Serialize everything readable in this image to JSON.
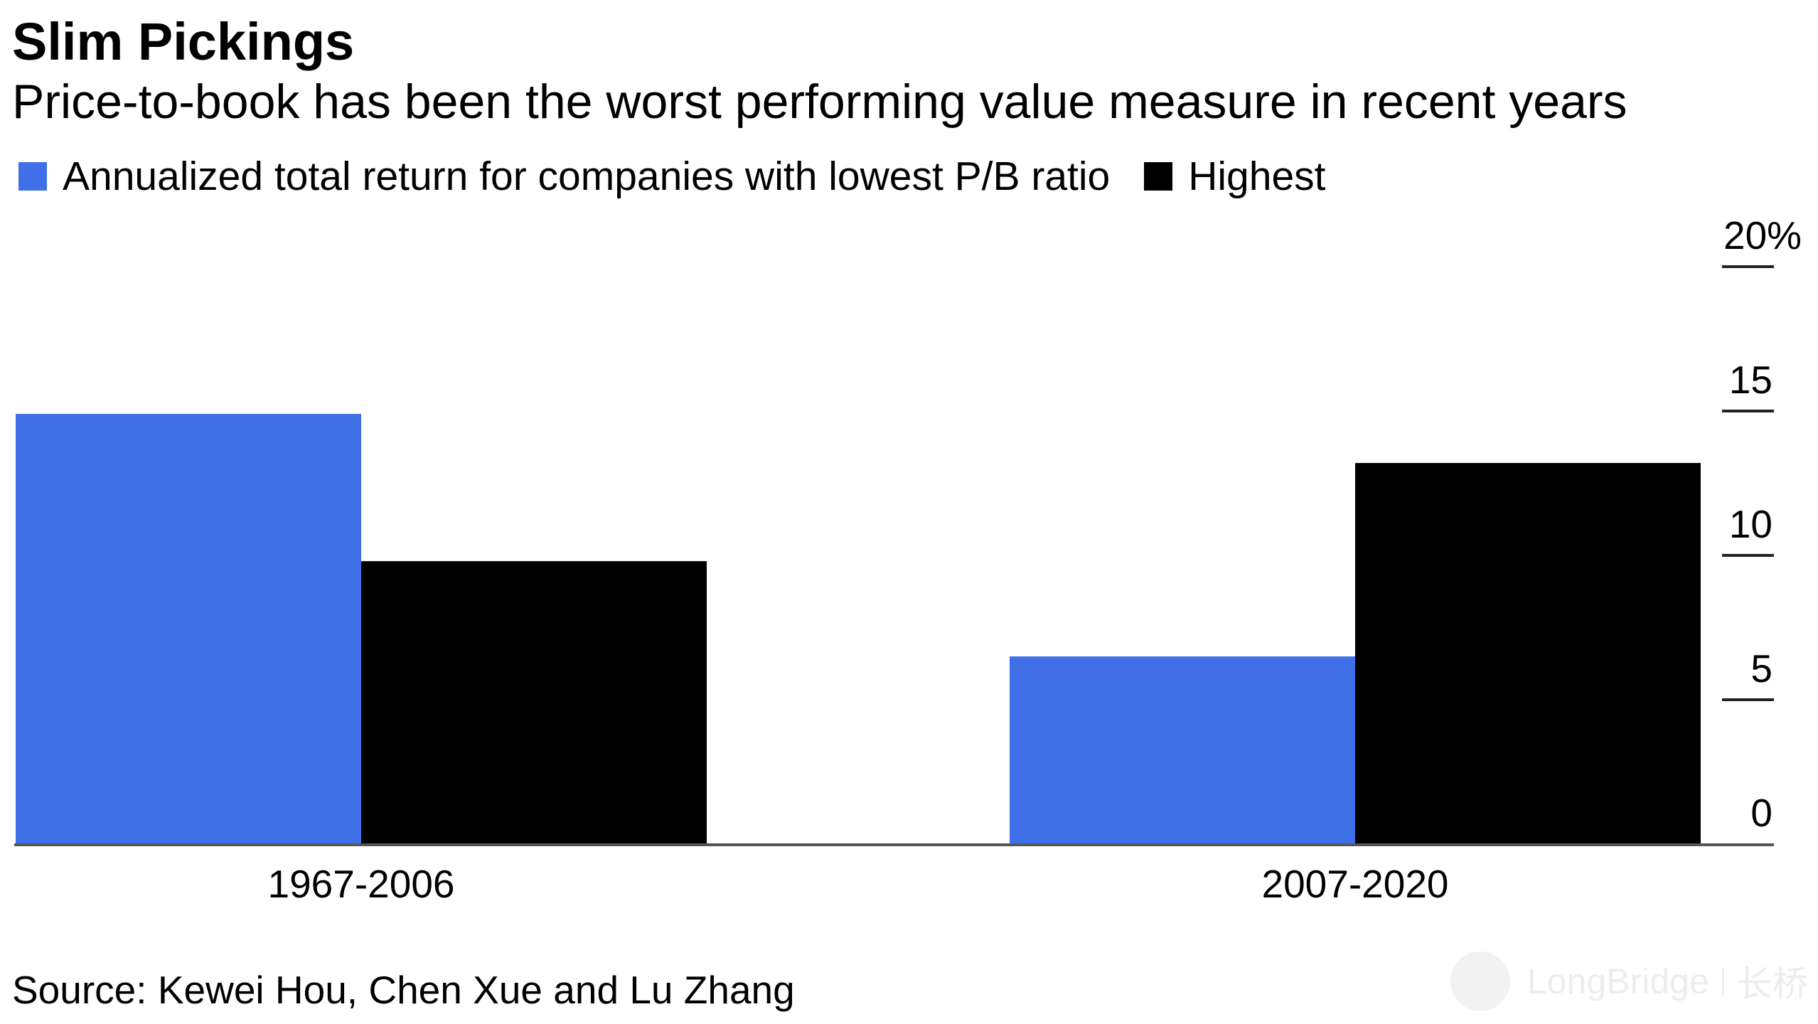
{
  "title": "Slim Pickings",
  "subtitle": "Price-to-book has been the worst performing value measure in recent years",
  "source": "Source: Kewei Hou, Chen Xue and Lu Zhang",
  "watermark": {
    "text": "LongBridge",
    "cn_text": "长桥"
  },
  "colors": {
    "lowest": "#4070E8",
    "highest": "#000000",
    "axis": "#555555",
    "tick": "#222222"
  },
  "chart_data": {
    "type": "bar",
    "categories": [
      "1967-2006",
      "2007-2020"
    ],
    "series": [
      {
        "name": "Annualized total return for companies with lowest P/B ratio",
        "values": [
          14.9,
          6.5
        ],
        "color": "#4070E8"
      },
      {
        "name": "Highest",
        "values": [
          9.8,
          13.2
        ],
        "color": "#000000"
      }
    ],
    "title": "Slim Pickings",
    "subtitle": "Price-to-book has been the worst performing value measure in recent years",
    "ylim": [
      0,
      20
    ],
    "yticks": [
      {
        "value": 0,
        "label": "0"
      },
      {
        "value": 5,
        "label": "5"
      },
      {
        "value": 10,
        "label": "10"
      },
      {
        "value": 15,
        "label": "15"
      },
      {
        "value": 20,
        "label": "20%"
      }
    ],
    "y_axis_position": "right",
    "grid": false,
    "legend": "top-left"
  }
}
